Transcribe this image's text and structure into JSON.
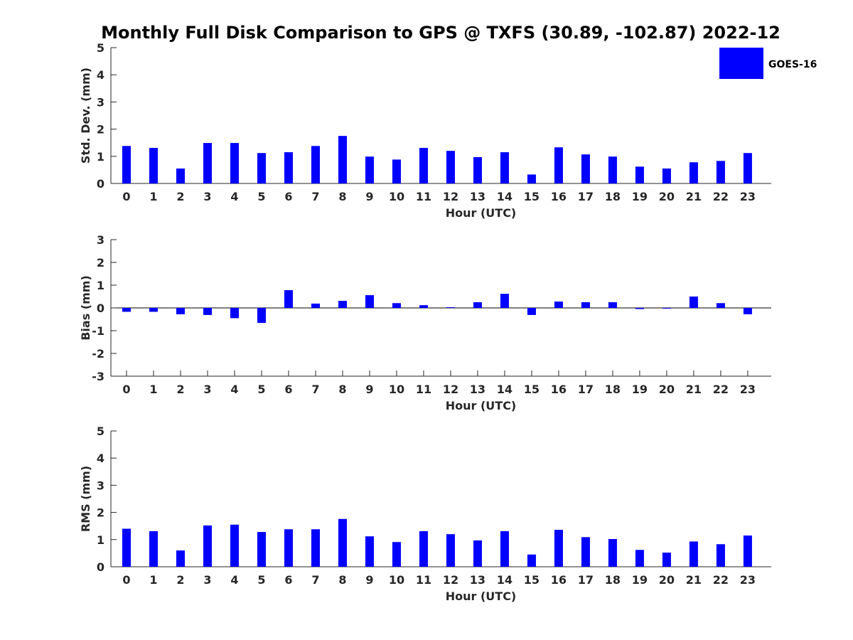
{
  "title": "Monthly Full Disk Comparison to GPS @ TXFS (30.89, -102.87) 2022-12",
  "legend": {
    "label": "GOES-16",
    "color": "#0000ff",
    "placement": "top-right"
  },
  "chart_data": [
    {
      "type": "bar",
      "categories": [
        "0",
        "1",
        "2",
        "3",
        "4",
        "5",
        "6",
        "7",
        "8",
        "9",
        "10",
        "11",
        "12",
        "13",
        "14",
        "15",
        "16",
        "17",
        "18",
        "19",
        "20",
        "21",
        "22",
        "23"
      ],
      "series": [
        {
          "name": "GOES-16",
          "color": "#0000ff",
          "values": [
            1.38,
            1.31,
            0.55,
            1.49,
            1.49,
            1.12,
            1.15,
            1.38,
            1.75,
            0.99,
            0.88,
            1.31,
            1.2,
            0.97,
            1.15,
            0.33,
            1.33,
            1.07,
            0.99,
            0.62,
            0.55,
            0.78,
            0.83,
            1.12
          ]
        }
      ],
      "xlabel": "Hour (UTC)",
      "ylabel": "Std. Dev. (mm)",
      "ylim": [
        0,
        5
      ],
      "yticks": [
        "0",
        "1",
        "2",
        "3",
        "4",
        "5"
      ],
      "grid": false
    },
    {
      "type": "bar",
      "categories": [
        "0",
        "1",
        "2",
        "3",
        "4",
        "5",
        "6",
        "7",
        "8",
        "9",
        "10",
        "11",
        "12",
        "13",
        "14",
        "15",
        "16",
        "17",
        "18",
        "19",
        "20",
        "21",
        "22",
        "23"
      ],
      "series": [
        {
          "name": "GOES-16",
          "color": "#0000ff",
          "values": [
            -0.17,
            -0.17,
            -0.28,
            -0.31,
            -0.45,
            -0.66,
            0.78,
            0.19,
            0.31,
            0.56,
            0.21,
            0.12,
            0.03,
            0.25,
            0.62,
            -0.31,
            0.28,
            0.25,
            0.25,
            -0.05,
            0.0,
            0.5,
            0.21,
            -0.28
          ]
        }
      ],
      "xlabel": "Hour (UTC)",
      "ylabel": "Bias (mm)",
      "ylim": [
        -3,
        3
      ],
      "yticks": [
        "-3",
        "-2",
        "-1",
        "0",
        "1",
        "2",
        "3"
      ],
      "grid": false
    },
    {
      "type": "bar",
      "categories": [
        "0",
        "1",
        "2",
        "3",
        "4",
        "5",
        "6",
        "7",
        "8",
        "9",
        "10",
        "11",
        "12",
        "13",
        "14",
        "15",
        "16",
        "17",
        "18",
        "19",
        "20",
        "21",
        "22",
        "23"
      ],
      "series": [
        {
          "name": "GOES-16",
          "color": "#0000ff",
          "values": [
            1.4,
            1.31,
            0.6,
            1.52,
            1.55,
            1.28,
            1.38,
            1.38,
            1.76,
            1.12,
            0.91,
            1.31,
            1.2,
            0.97,
            1.31,
            0.45,
            1.36,
            1.09,
            1.02,
            0.62,
            0.52,
            0.93,
            0.83,
            1.15
          ]
        }
      ],
      "xlabel": "Hour (UTC)",
      "ylabel": "RMS (mm)",
      "ylim": [
        0,
        5
      ],
      "yticks": [
        "0",
        "1",
        "2",
        "3",
        "4",
        "5"
      ],
      "grid": false
    }
  ]
}
